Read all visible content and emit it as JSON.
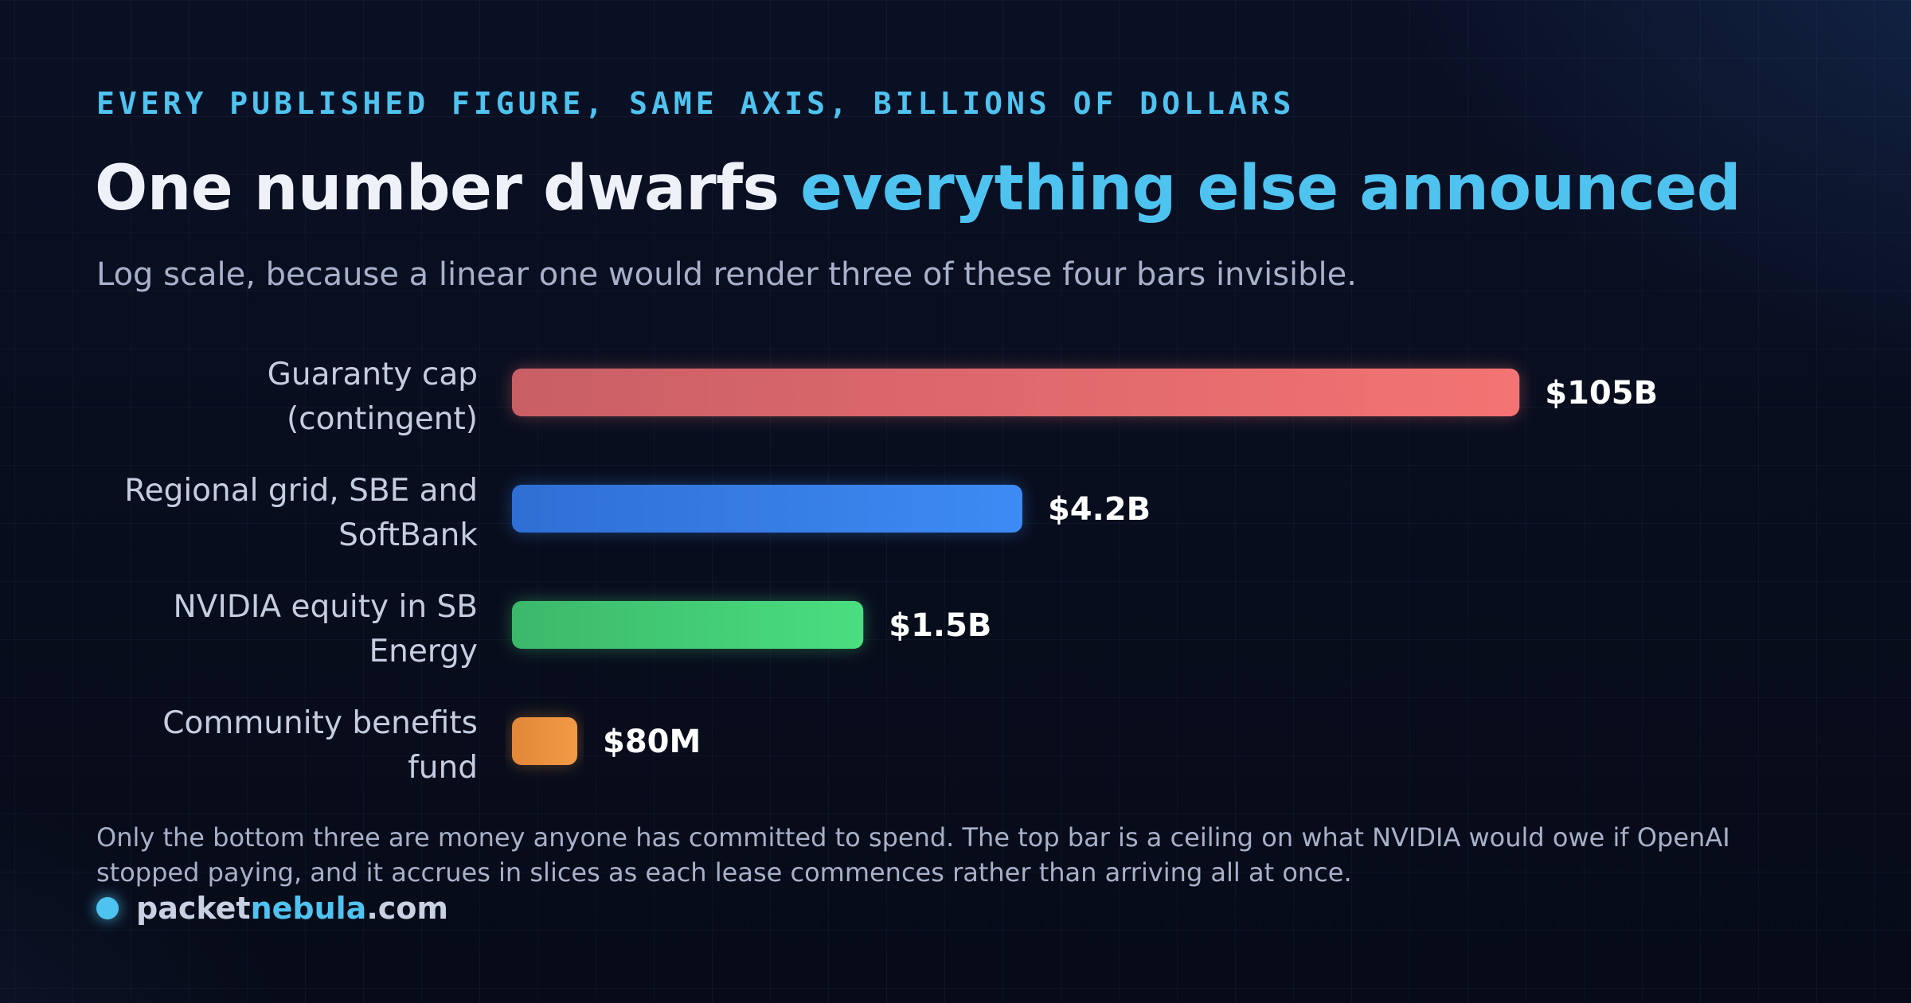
{
  "eyebrow": "EVERY PUBLISHED FIGURE, SAME AXIS, BILLIONS OF DOLLARS",
  "title": {
    "main": "One number dwarfs ",
    "accent": "everything else announced"
  },
  "subtitle": "Log scale, because a linear one would render three of these four bars invisible.",
  "footnote": "Only the bottom three are money anyone has committed to spend. The top bar is a ceiling on what NVIDIA would owe if OpenAI stopped paying, and it accrues in slices as each lease commences rather than arriving all at once.",
  "brand": {
    "prefix": "packet",
    "accent": "nebula",
    "suffix": ".com"
  },
  "colors": {
    "accent": "#4fc3f0",
    "text": "#eef1f8"
  },
  "chart_data": {
    "type": "bar",
    "orientation": "horizontal",
    "scale": "log",
    "unit": "billions of dollars",
    "categories": [
      [
        "Guaranty cap",
        "(contingent)"
      ],
      [
        "Regional grid, SBE and",
        "SoftBank"
      ],
      [
        "NVIDIA equity in SB",
        "Energy"
      ],
      [
        "Community benefits",
        "fund"
      ]
    ],
    "values": [
      105,
      4.2,
      1.5,
      0.08
    ],
    "value_labels": [
      "$105B",
      "$4.2B",
      "$1.5B",
      "$80M"
    ],
    "colors": [
      [
        "#c95f66",
        "#f47373"
      ],
      [
        "#2f6fd4",
        "#3d8bf5"
      ],
      [
        "#3cb86a",
        "#4ade80"
      ],
      [
        "#e08838",
        "#f39a45"
      ]
    ]
  }
}
